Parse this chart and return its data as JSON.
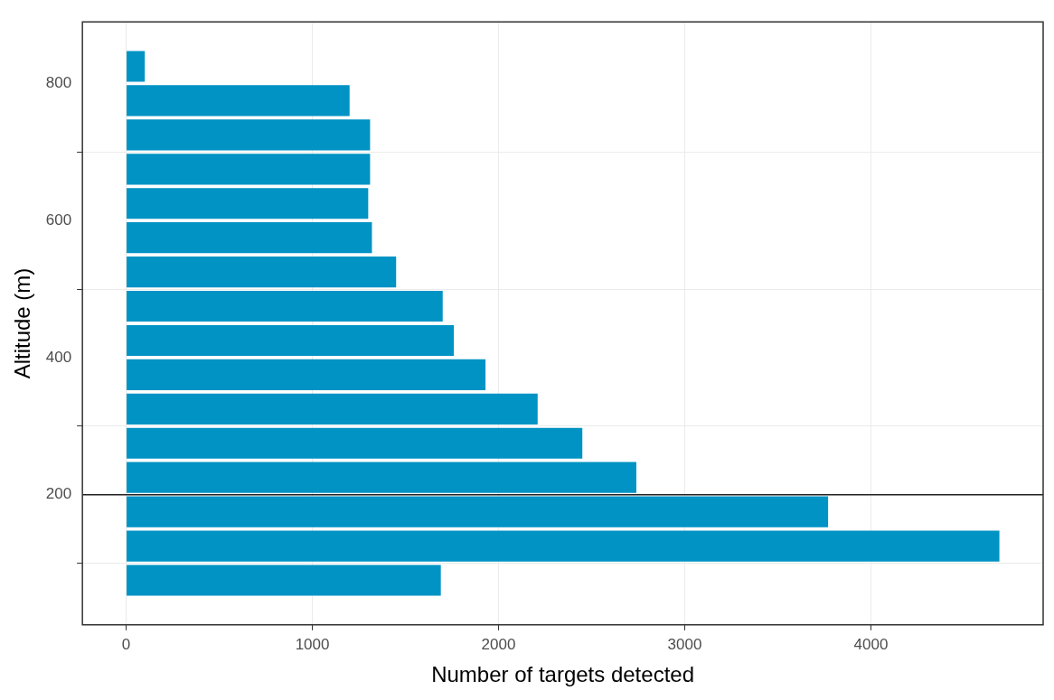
{
  "chart_data": {
    "type": "bar",
    "orientation": "horizontal",
    "xlabel": "Number of targets detected",
    "ylabel": "Altitude (m)",
    "x": [
      75,
      125,
      175,
      225,
      275,
      325,
      375,
      425,
      475,
      525,
      575,
      625,
      675,
      725,
      775,
      825
    ],
    "values": [
      1690,
      4690,
      3770,
      2740,
      2450,
      2210,
      1930,
      1760,
      1700,
      1450,
      1320,
      1300,
      1310,
      1310,
      1200,
      100
    ],
    "color": "#0093c4",
    "xlim": [
      -235,
      4925
    ],
    "xticks": [
      0,
      1000,
      2000,
      3000,
      4000
    ],
    "ylim": [
      10,
      890
    ],
    "yticks": [
      200,
      400,
      600,
      800
    ],
    "grid": true,
    "ref_lines": [
      {
        "axis": "y",
        "value": 200,
        "color": "#222222"
      }
    ]
  }
}
